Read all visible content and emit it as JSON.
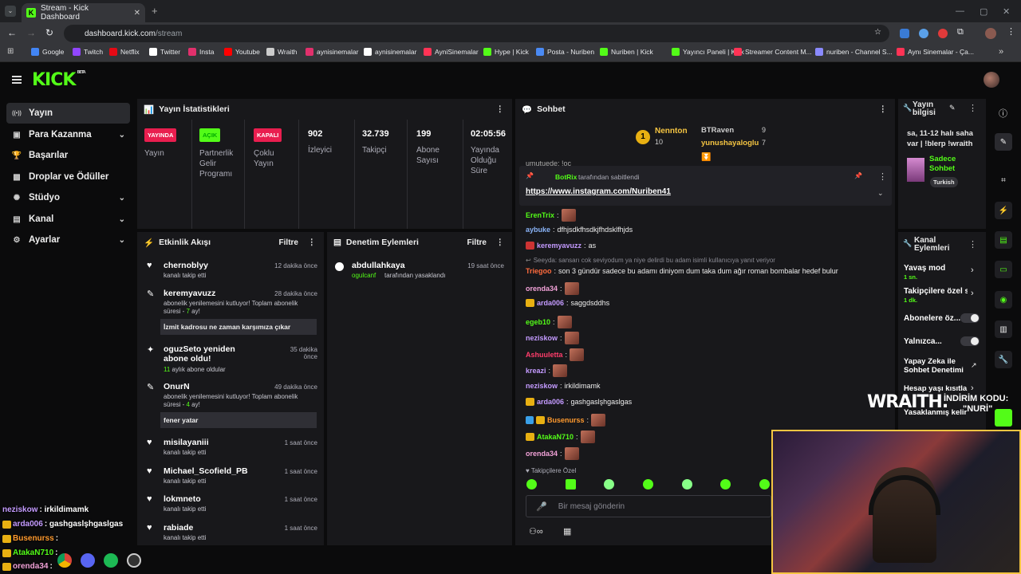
{
  "browser": {
    "tab_title": "Stream - Kick Dashboard",
    "url_host": "dashboard.kick.com",
    "url_path": "/stream",
    "bookmarks": [
      "Google",
      "Twitch",
      "Netflix",
      "Twitter",
      "Insta",
      "Youtube",
      "Wraith",
      "aynisinemalar",
      "aynisinemalar",
      "AyniSinemalar",
      "Hype | Kick",
      "Posta - Nuriben",
      "Nuriben | Kick",
      "Yayıncı Paneli | Kick",
      "Streamer Content M...",
      "nuriben - Channel S...",
      "Aynı Sinemalar - Ça..."
    ]
  },
  "brand": {
    "logo": "KICK",
    "beta": "BETA",
    "accent": "#53fc18"
  },
  "sidebar": {
    "items": [
      {
        "label": "Yayın",
        "icon": "broadcast-icon"
      },
      {
        "label": "Para Kazanma",
        "icon": "money-icon"
      },
      {
        "label": "Başarılar",
        "icon": "trophy-icon"
      },
      {
        "label": "Droplar ve Ödüller",
        "icon": "gift-icon"
      },
      {
        "label": "Stüdyo",
        "icon": "studio-icon"
      },
      {
        "label": "Kanal",
        "icon": "channel-icon"
      },
      {
        "label": "Ayarlar",
        "icon": "gear-icon"
      }
    ]
  },
  "stats": {
    "title": "Yayın İstatistikleri",
    "broadcast": {
      "badge": "YAYINDA",
      "label": "Yayın"
    },
    "partner": {
      "badge": "AÇIK",
      "label": "Partnerlik Gelir Programı"
    },
    "multi": {
      "badge": "KAPALI",
      "label": "Çoklu Yayın"
    },
    "viewers": {
      "value": "902",
      "label": "İzleyici"
    },
    "followers": {
      "value": "32.739",
      "label": "Takipçi"
    },
    "subs": {
      "value": "199",
      "label": "Abone Sayısı"
    },
    "duration": {
      "value": "02:05:56",
      "label": "Yayında Olduğu Süre"
    }
  },
  "activity": {
    "title": "Etkinlik Akışı",
    "filter": "Filtre",
    "items": [
      {
        "name": "chernoblyy",
        "time": "12 dakika önce",
        "sub": "kanalı takip etti"
      },
      {
        "name": "keremyavuzz",
        "time": "28 dakika önce",
        "sub": "abonelik yenilemesini kutluyor! Toplam abonelik süresi - ",
        "months": "7",
        "unit": "ay!",
        "msg": "İzmit kadrosu ne zaman karşımıza çıkar"
      },
      {
        "name": "oguzSeto yeniden abone oldu!",
        "time": "35 dakika önce",
        "sub_num": "11",
        "sub": "aylık abone oldular"
      },
      {
        "name": "OnurN",
        "time": "49 dakika önce",
        "sub": "abonelik yenilemesini kutluyor! Toplam abonelik süresi - ",
        "months": "4",
        "unit": "ay!",
        "msg": "fener yatar"
      },
      {
        "name": "misilayaniii",
        "time": "1 saat önce",
        "sub": "kanalı takip etti"
      },
      {
        "name": "Michael_Scofield_PB",
        "time": "1 saat önce",
        "sub": "kanalı takip etti"
      },
      {
        "name": "lokmneto",
        "time": "1 saat önce",
        "sub": "kanalı takip etti"
      },
      {
        "name": "rabiade",
        "time": "1 saat önce",
        "sub": "kanalı takip etti"
      }
    ]
  },
  "moderation": {
    "title": "Denetim Eylemleri",
    "filter": "Filtre",
    "items": [
      {
        "name": "abdullahkaya",
        "time": "19 saat önce",
        "actor": "ogulcanf",
        "sub": "tarafından yasaklandı"
      }
    ]
  },
  "chat": {
    "title": "Sohbet",
    "leaders": [
      {
        "rank": "1",
        "name": "Nennton",
        "count": "10"
      },
      {
        "name": "BTRaven",
        "count": "9"
      },
      {
        "name": "yunushayaloglu",
        "count": "7"
      }
    ],
    "top_cut": "umutuede: !oc",
    "pinned": {
      "by": "BotRix",
      "by_text": "tarafından sabitlendi",
      "link": "https://www.instagram.com/Nuriben41"
    },
    "messages": [
      {
        "user": "ErenTrix",
        "color": "#53fc18",
        "text": "",
        "emote": true
      },
      {
        "user": "aybuke",
        "color": "#8ab4f8",
        "text": "dfhjsdkfhsdkjfhdsklfhjds"
      },
      {
        "user": "keremyavuzz",
        "color": "#c49bff",
        "text": "as"
      },
      {
        "reply": "Seeyda: sansarı cok seviyodum ya niye delirdi bu adam isimli kullanıcıya yanıt veriyor"
      },
      {
        "user": "Triegoo",
        "color": "#ff6b3d",
        "text": "son 3 gündür sadece bu adamı diniyom dum taka dum ağır roman bombalar hedef bulur"
      },
      {
        "user": "orenda34",
        "color": "#f2a2d8",
        "text": "",
        "emote": true
      },
      {
        "user": "arda006",
        "color": "#c49bff",
        "text": "saggdsddhs"
      },
      {
        "user": "egeb10",
        "color": "#53fc18",
        "text": "",
        "emote": true
      },
      {
        "user": "neziskow",
        "color": "#c49bff",
        "text": "",
        "emote": true
      },
      {
        "user": "Ashuuletta",
        "color": "#ff3d6b",
        "text": "",
        "emote": true
      },
      {
        "user": "kreazi",
        "color": "#c49bff",
        "text": "",
        "emote": true
      },
      {
        "user": "neziskow",
        "color": "#c49bff",
        "text": "irkildimamk"
      },
      {
        "user": "arda006",
        "color": "#c49bff",
        "text": "gashgaslşhgaslgas"
      },
      {
        "user": "Busenurss",
        "color": "#ff9a2e",
        "text": "",
        "emote": true
      },
      {
        "user": "AtakaN710",
        "color": "#53fc18",
        "text": "",
        "emote": true
      },
      {
        "user": "orenda34",
        "color": "#f2a2d8",
        "text": "",
        "emote": true
      }
    ],
    "followers_only": "Takipçilere Özel",
    "input_placeholder": "Bir mesaj gönderin"
  },
  "stream_info": {
    "title": "Yayın bilgisi",
    "desc": "sa, 11-12 halı saha var | !blerp !wraith",
    "category": "Sadece Sohbet",
    "tag": "Turkish"
  },
  "channel_actions": {
    "title": "Kanal Eylemleri",
    "slow": {
      "label": "Yavaş mod",
      "value": "1 sn."
    },
    "followers": {
      "label": "Takipçilere özel s",
      "value": "1 dk."
    },
    "subs_only": "Abonelere öz...",
    "emote_only": "Yalnızca...",
    "ai_mod": "Yapay Zeka ile Sohbet Denetimi",
    "age": "Hesap yaşı kısıtla",
    "banned": "Yasaklanmış kelir"
  },
  "overlay": {
    "brand": "WRAITH.",
    "discount_label": "İNDİRİM KODU:",
    "code": "\"NURİ\"",
    "chat": [
      {
        "user": "neziskow",
        "text": ": irkildimamk",
        "color": "#c49bff"
      },
      {
        "user": "arda006",
        "text": ": gashgaslşhgaslgas",
        "color": "#c49bff"
      },
      {
        "user": "Busenurss",
        "text": ":",
        "color": "#ff9a2e"
      },
      {
        "user": "AtakaN710",
        "text": ":",
        "color": "#53fc18"
      },
      {
        "user": "orenda34",
        "text": ":",
        "color": "#f2a2d8"
      }
    ]
  }
}
